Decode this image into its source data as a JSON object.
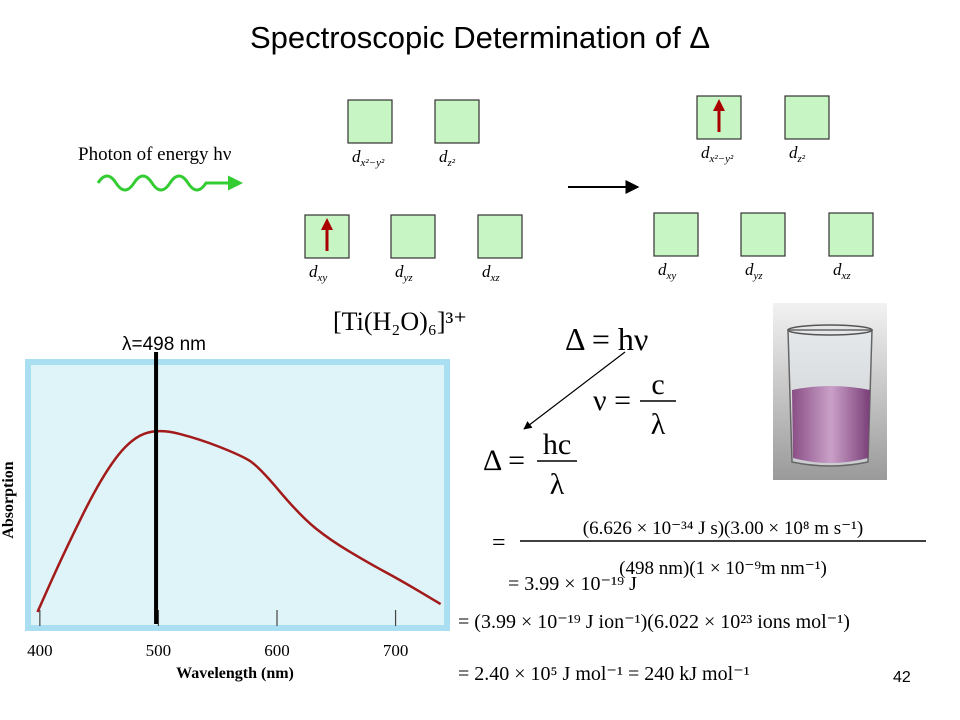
{
  "title": "Spectroscopic Determination of Δ",
  "diagram": {
    "photon_label": "Photon of energy hν",
    "orbital_letter": "d",
    "orbitals": [
      {
        "sub": "x²−y²",
        "ground": 0,
        "excited": 1
      },
      {
        "sub": "z²",
        "ground": 0,
        "excited": 0
      },
      {
        "sub": "xy",
        "ground": 1,
        "excited": 0
      },
      {
        "sub": "yz",
        "ground": 0,
        "excited": 0
      },
      {
        "sub": "xz",
        "ground": 0,
        "excited": 0
      }
    ],
    "formula": "[Ti(H₂O)₆]³⁺"
  },
  "chart_data": {
    "type": "line",
    "x_label": "Wavelength (nm)",
    "y_label": "Absorption",
    "x": [
      398,
      420,
      451,
      476,
      500,
      535,
      569,
      584,
      620,
      645,
      679,
      704,
      738
    ],
    "series": [
      {
        "color": "#a31a1a",
        "values": [
          0.06,
          0.28,
          0.56,
          0.71,
          0.75,
          0.71,
          0.65,
          0.61,
          0.42,
          0.33,
          0.24,
          0.18,
          0.09
        ]
      }
    ],
    "xlim": [
      390,
      740
    ],
    "ylim": [
      0,
      1
    ],
    "xticks": [
      400,
      500,
      600,
      700
    ],
    "marker": {
      "value": 498,
      "label": "λ=498 nm"
    }
  },
  "equations": {
    "delta": "Δ = hν",
    "nu": {
      "lhs": "ν =",
      "num": "c",
      "den": "λ"
    },
    "delta_hc": {
      "lhs": "Δ =",
      "num": "hc",
      "den": "λ"
    },
    "calc": {
      "lhs": "=",
      "num": "(6.626 × 10⁻³⁴  J s)(3.00 × 10⁸ m s⁻¹)",
      "den": "(498 nm)(1 × 10⁻⁹m nm⁻¹)"
    },
    "result_j": "= 3.99 × 10⁻¹⁹ J",
    "per_mol": "= (3.99 × 10⁻¹⁹ J ion⁻¹)(6.022 × 10²³ ions mol⁻¹)",
    "final": "= 2.40 × 10⁵ J mol⁻¹  =  240 kJ mol⁻¹"
  },
  "page_number": "42"
}
